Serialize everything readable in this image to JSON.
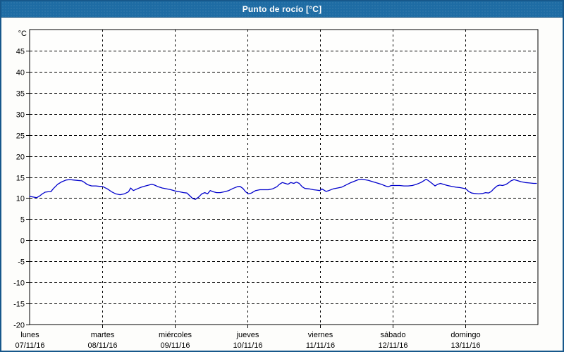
{
  "window": {
    "title": "Punto de rocío [°C]"
  },
  "colors": {
    "titlebar_bg": "#1e6ca4",
    "titlebar_text": "#ffffff",
    "frame_border": "#17588b",
    "plot_bg": "#fefefd",
    "axis": "#000000",
    "grid": "#000000",
    "label_text": "#000000",
    "line": "#0000cc"
  },
  "chart_data": {
    "type": "line",
    "title": "Punto de rocío [°C]",
    "ylabel_unit": "°C",
    "ylim": [
      -20,
      50
    ],
    "ytick_step": 5,
    "grid": true,
    "legend_position": "none",
    "x_range_hours": [
      0,
      168
    ],
    "x_categories_days": [
      {
        "name": "lunes",
        "date": "07/11/16"
      },
      {
        "name": "martes",
        "date": "08/11/16"
      },
      {
        "name": "miércoles",
        "date": "09/11/16"
      },
      {
        "name": "jueves",
        "date": "10/11/16"
      },
      {
        "name": "viernes",
        "date": "11/11/16"
      },
      {
        "name": "sábado",
        "date": "12/11/16"
      },
      {
        "name": "domingo",
        "date": "13/11/16"
      }
    ],
    "series": [
      {
        "name": "Punto de rocío",
        "color": "#0000cc",
        "points_hours_value": [
          [
            0,
            10.4
          ],
          [
            0.9,
            10.3
          ],
          [
            2.3,
            10.1
          ],
          [
            3.3,
            10.5
          ],
          [
            4.2,
            11
          ],
          [
            5.1,
            11.4
          ],
          [
            6.1,
            11.5
          ],
          [
            7,
            11.5
          ],
          [
            7.9,
            12.3
          ],
          [
            9.3,
            13.3
          ],
          [
            10.7,
            13.9
          ],
          [
            12.1,
            14.3
          ],
          [
            13.3,
            14.4
          ],
          [
            14.5,
            14.3
          ],
          [
            15.9,
            14.2
          ],
          [
            17.3,
            14.1
          ],
          [
            18.2,
            13.7
          ],
          [
            19.1,
            13.2
          ],
          [
            20.5,
            12.9
          ],
          [
            21.9,
            12.9
          ],
          [
            23.1,
            12.8
          ],
          [
            24,
            12.8
          ],
          [
            25.7,
            12.2
          ],
          [
            27.1,
            11.5
          ],
          [
            28.5,
            11
          ],
          [
            29.9,
            10.8
          ],
          [
            31.3,
            11
          ],
          [
            32.7,
            11.5
          ],
          [
            33.4,
            12.4
          ],
          [
            34.3,
            11.8
          ],
          [
            35.5,
            12.2
          ],
          [
            36.9,
            12.6
          ],
          [
            38.3,
            12.9
          ],
          [
            39.4,
            13.1
          ],
          [
            40.4,
            13.3
          ],
          [
            41.3,
            13.1
          ],
          [
            42.5,
            12.7
          ],
          [
            43.9,
            12.4
          ],
          [
            45.3,
            12.2
          ],
          [
            46.7,
            12
          ],
          [
            48.1,
            11.7
          ],
          [
            49.5,
            11.5
          ],
          [
            50.9,
            11.3
          ],
          [
            52,
            11.2
          ],
          [
            53,
            10.5
          ],
          [
            53.9,
            9.9
          ],
          [
            54.8,
            9.7
          ],
          [
            55.8,
            10.2
          ],
          [
            56.9,
            11
          ],
          [
            57.9,
            11.3
          ],
          [
            58.8,
            11
          ],
          [
            59.7,
            11.8
          ],
          [
            60.7,
            11.5
          ],
          [
            61.8,
            11.3
          ],
          [
            63,
            11.3
          ],
          [
            64.4,
            11.5
          ],
          [
            65.8,
            11.8
          ],
          [
            67.2,
            12.3
          ],
          [
            68.6,
            12.7
          ],
          [
            69.5,
            12.8
          ],
          [
            70.5,
            12.3
          ],
          [
            71.4,
            11.5
          ],
          [
            72.3,
            11
          ],
          [
            73.3,
            11.2
          ],
          [
            74.7,
            11.8
          ],
          [
            76.1,
            12
          ],
          [
            77.5,
            12
          ],
          [
            78.9,
            12
          ],
          [
            80.3,
            12.2
          ],
          [
            81.7,
            12.7
          ],
          [
            82.6,
            13.3
          ],
          [
            83.5,
            13.7
          ],
          [
            84.5,
            13.5
          ],
          [
            85.4,
            13.3
          ],
          [
            86.3,
            13.7
          ],
          [
            87.3,
            13.5
          ],
          [
            88.2,
            13.8
          ],
          [
            89.1,
            13.5
          ],
          [
            90.1,
            12.7
          ],
          [
            91,
            12.3
          ],
          [
            92.4,
            12.2
          ],
          [
            93.8,
            12
          ],
          [
            95,
            11.9
          ],
          [
            95.9,
            11.8
          ],
          [
            96.6,
            12.2
          ],
          [
            98,
            11.6
          ],
          [
            98.9,
            11.8
          ],
          [
            100.3,
            12.2
          ],
          [
            101.7,
            12.4
          ],
          [
            103.1,
            12.6
          ],
          [
            104.5,
            13.1
          ],
          [
            105.9,
            13.6
          ],
          [
            107.3,
            14
          ],
          [
            108.7,
            14.4
          ],
          [
            109.7,
            14.5
          ],
          [
            110.6,
            14.4
          ],
          [
            112,
            14.2
          ],
          [
            113.4,
            13.9
          ],
          [
            114.8,
            13.6
          ],
          [
            116.2,
            13.3
          ],
          [
            117.6,
            12.9
          ],
          [
            118.5,
            12.7
          ],
          [
            119.5,
            13
          ],
          [
            120.2,
            13
          ],
          [
            120.9,
            13
          ],
          [
            122.3,
            13
          ],
          [
            123.7,
            12.9
          ],
          [
            125.1,
            12.9
          ],
          [
            126.5,
            13
          ],
          [
            127.9,
            13.3
          ],
          [
            129.3,
            13.7
          ],
          [
            130.2,
            14.1
          ],
          [
            131.1,
            14.5
          ],
          [
            132.1,
            14
          ],
          [
            133,
            13.5
          ],
          [
            134,
            12.9
          ],
          [
            134.9,
            13.3
          ],
          [
            135.8,
            13.5
          ],
          [
            136.7,
            13.3
          ],
          [
            138.1,
            13
          ],
          [
            139.5,
            12.8
          ],
          [
            140.9,
            12.6
          ],
          [
            142.3,
            12.5
          ],
          [
            143.7,
            12.3
          ],
          [
            144.2,
            12.2
          ],
          [
            145.1,
            11.6
          ],
          [
            146.1,
            11.2
          ],
          [
            147,
            11.1
          ],
          [
            148.4,
            11
          ],
          [
            149.8,
            11.1
          ],
          [
            150.7,
            11.3
          ],
          [
            151.7,
            11.2
          ],
          [
            152.6,
            11.6
          ],
          [
            153.5,
            12.3
          ],
          [
            154.5,
            12.9
          ],
          [
            155.4,
            13.1
          ],
          [
            156.3,
            13
          ],
          [
            157.3,
            13.2
          ],
          [
            158.2,
            13.6
          ],
          [
            159.1,
            14.1
          ],
          [
            160.1,
            14.4
          ],
          [
            161,
            14.2
          ],
          [
            162.4,
            13.9
          ],
          [
            163.8,
            13.7
          ],
          [
            165.2,
            13.6
          ],
          [
            166.6,
            13.5
          ],
          [
            167.5,
            13.5
          ]
        ]
      }
    ]
  }
}
